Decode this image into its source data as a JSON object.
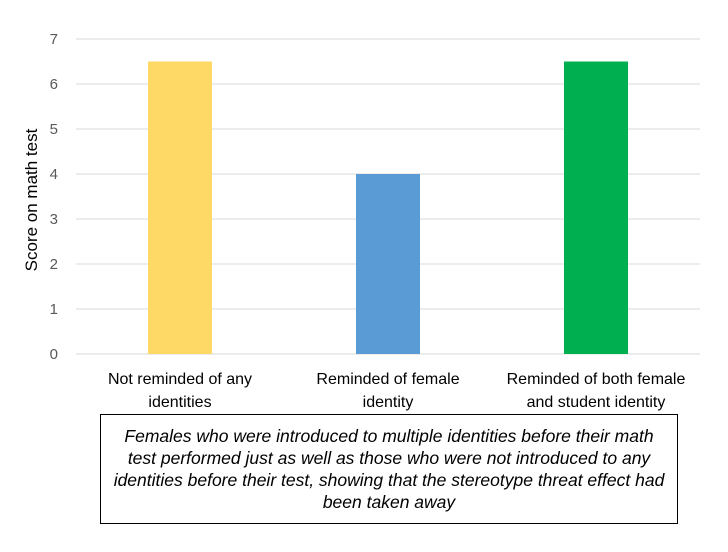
{
  "chart_data": {
    "type": "bar",
    "ylabel": "Score on math test",
    "xlabel": "",
    "ylim": [
      0,
      7
    ],
    "yticks": [
      0,
      1,
      2,
      3,
      4,
      5,
      6,
      7
    ],
    "grid": true,
    "categories": [
      [
        "Not reminded of any",
        "identities"
      ],
      [
        "Reminded of female",
        "identity"
      ],
      [
        "Reminded of both female",
        "and student identity"
      ]
    ],
    "values": [
      6.5,
      4.0,
      6.5
    ],
    "colors": [
      "#FFD966",
      "#5B9BD5",
      "#00B050"
    ]
  },
  "caption": "Females who were introduced to multiple identities before their math test performed just as well as those who were not introduced to any identities before their test, showing that the stereotype threat effect had been taken away"
}
